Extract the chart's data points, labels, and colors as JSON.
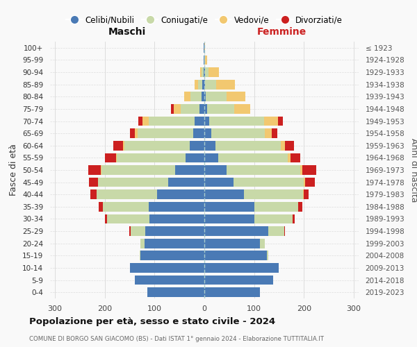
{
  "age_groups": [
    "100+",
    "95-99",
    "90-94",
    "85-89",
    "80-84",
    "75-79",
    "70-74",
    "65-69",
    "60-64",
    "55-59",
    "50-54",
    "45-49",
    "40-44",
    "35-39",
    "30-34",
    "25-29",
    "20-24",
    "15-19",
    "10-14",
    "5-9",
    "0-4"
  ],
  "birth_years": [
    "≤ 1923",
    "1924-1928",
    "1929-1933",
    "1934-1938",
    "1939-1943",
    "1944-1948",
    "1949-1953",
    "1954-1958",
    "1959-1963",
    "1964-1968",
    "1969-1973",
    "1974-1978",
    "1979-1983",
    "1984-1988",
    "1989-1993",
    "1994-1998",
    "1999-2003",
    "2004-2008",
    "2009-2013",
    "2014-2018",
    "2019-2023"
  ],
  "colors": {
    "celibe": "#4a7ab5",
    "coniugato": "#c8d9a8",
    "vedovo": "#f2c870",
    "divorziato": "#cc2020"
  },
  "maschi": {
    "celibe": [
      1,
      1,
      2,
      4,
      6,
      10,
      20,
      22,
      30,
      38,
      58,
      72,
      95,
      112,
      110,
      118,
      120,
      128,
      150,
      140,
      115
    ],
    "coniugato": [
      0,
      0,
      3,
      8,
      22,
      38,
      92,
      112,
      130,
      138,
      148,
      142,
      122,
      92,
      85,
      30,
      8,
      2,
      0,
      0,
      0
    ],
    "vedovo": [
      0,
      0,
      3,
      8,
      12,
      14,
      12,
      6,
      3,
      2,
      2,
      0,
      0,
      0,
      0,
      0,
      0,
      0,
      0,
      0,
      0
    ],
    "divorziato": [
      0,
      0,
      0,
      0,
      0,
      5,
      8,
      10,
      20,
      22,
      25,
      18,
      12,
      8,
      5,
      3,
      0,
      0,
      0,
      0,
      0
    ]
  },
  "femmine": {
    "nubile": [
      0,
      0,
      1,
      2,
      3,
      5,
      10,
      14,
      22,
      28,
      45,
      58,
      80,
      100,
      100,
      128,
      112,
      126,
      150,
      138,
      112
    ],
    "coniugata": [
      0,
      2,
      8,
      22,
      42,
      55,
      110,
      108,
      132,
      140,
      148,
      142,
      118,
      88,
      78,
      32,
      10,
      2,
      0,
      0,
      0
    ],
    "vedova": [
      2,
      4,
      20,
      38,
      38,
      32,
      28,
      14,
      8,
      5,
      4,
      2,
      1,
      1,
      0,
      0,
      0,
      0,
      0,
      0,
      0
    ],
    "divorziata": [
      0,
      0,
      0,
      0,
      0,
      0,
      10,
      10,
      18,
      20,
      28,
      20,
      10,
      8,
      4,
      2,
      0,
      0,
      0,
      0,
      0
    ]
  },
  "xlim": 310,
  "title": "Popolazione per età, sesso e stato civile - 2024",
  "subtitle": "COMUNE DI BORGO SAN GIACOMO (BS) - Dati ISTAT 1° gennaio 2024 - Elaborazione TUTTITALIA.IT",
  "xlabel_left": "Maschi",
  "xlabel_right": "Femmine",
  "ylabel_left": "Fasce di età",
  "ylabel_right": "Anni di nascita",
  "bg_color": "#f9f9f9",
  "grid_color": "#dddddd",
  "legend_labels": [
    "Celibi/Nubili",
    "Coniugati/e",
    "Vedovi/e",
    "Divorziati/e"
  ],
  "legend_colors": [
    "#4a7ab5",
    "#c8d9a8",
    "#f2c870",
    "#cc2020"
  ]
}
